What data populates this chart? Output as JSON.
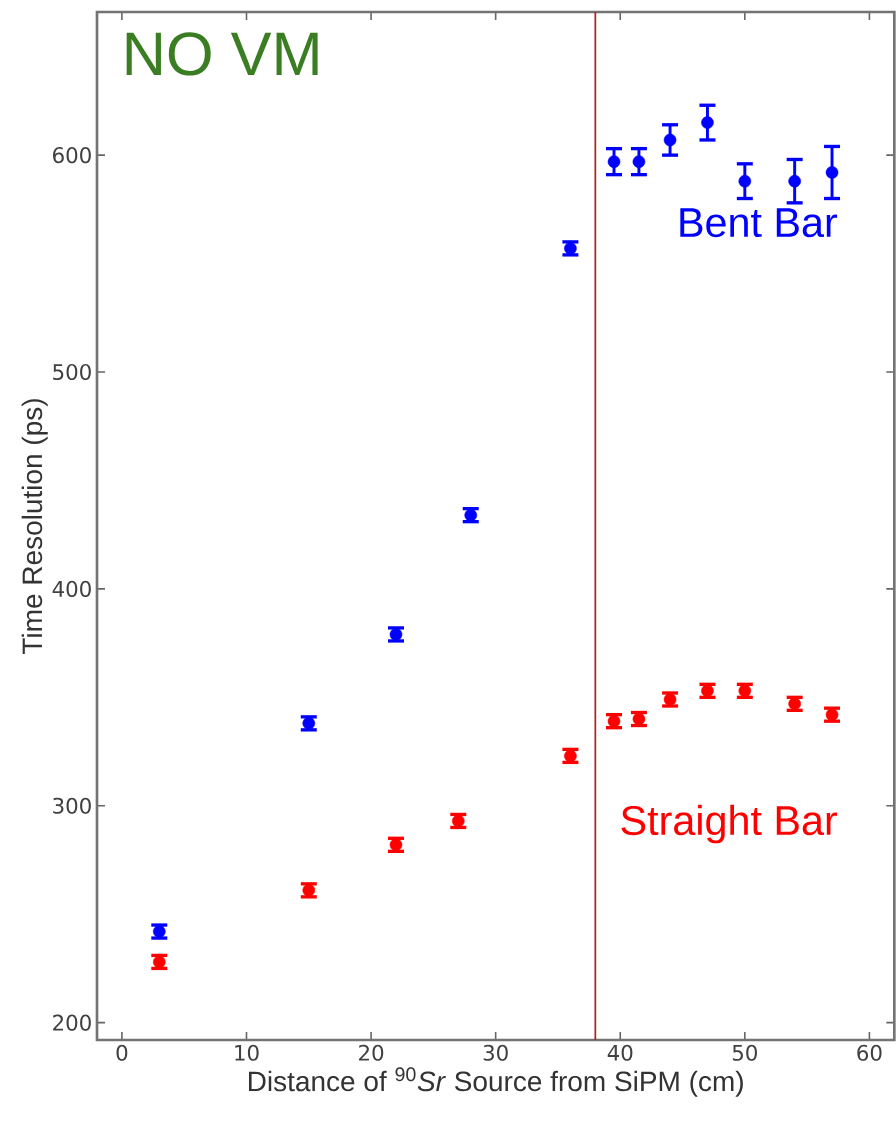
{
  "chart_data": {
    "type": "scatter",
    "xlabel": "Distance of $^{90}$*Sr* Source from SiPM (cm)",
    "ylabel": "Time Resolution (ps)",
    "annotations": [
      "NO VM"
    ],
    "xlim": [
      -2,
      62
    ],
    "ylim": [
      192,
      666
    ],
    "xticks": [
      0,
      10,
      20,
      30,
      40,
      50,
      60
    ],
    "yticks": [
      200,
      300,
      400,
      500,
      600
    ],
    "marker": "circle",
    "ref_lines": [
      {
        "axis": "x",
        "value": 38,
        "color": "#b22222"
      }
    ],
    "series": [
      {
        "name": "Bent Bar",
        "color": "#0000ff",
        "x": [
          3,
          15,
          22,
          28,
          36,
          39.5,
          41.5,
          44,
          47,
          50,
          54,
          57
        ],
        "values": [
          242,
          338,
          379,
          434,
          557,
          597,
          597,
          607,
          615,
          588,
          588,
          592
        ],
        "errors": [
          3,
          3,
          3,
          3,
          3,
          6,
          6,
          7,
          8,
          8,
          10,
          12
        ]
      },
      {
        "name": "Straight Bar",
        "color": "#ff0000",
        "x": [
          3,
          15,
          22,
          27,
          36,
          39.5,
          41.5,
          44,
          47,
          50,
          54,
          57
        ],
        "values": [
          228,
          261,
          282,
          293,
          323,
          339,
          340,
          349,
          353,
          353,
          347,
          342
        ],
        "errors": [
          3,
          3,
          3,
          3,
          3,
          3,
          3,
          3,
          3,
          3,
          3,
          3
        ]
      }
    ]
  }
}
